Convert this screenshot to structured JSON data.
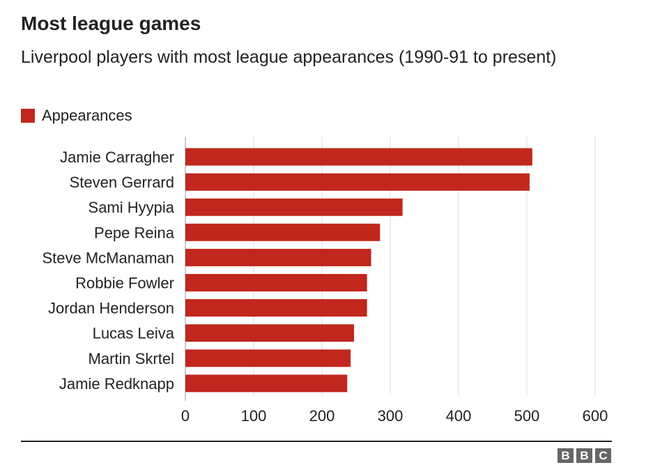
{
  "chart_data": {
    "type": "bar",
    "orientation": "horizontal",
    "title": "Most league games",
    "subtitle": "Liverpool players with most league appearances (1990-91 to present)",
    "categories": [
      "Jamie Carragher",
      "Steven Gerrard",
      "Sami Hyypia",
      "Pepe Reina",
      "Steve McManaman",
      "Robbie Fowler",
      "Jordan Henderson",
      "Lucas Leiva",
      "Martin Skrtel",
      "Jamie Redknapp"
    ],
    "series": [
      {
        "name": "Appearances",
        "values": [
          508,
          504,
          318,
          285,
          272,
          266,
          266,
          247,
          242,
          237
        ],
        "color": "#c1271c"
      }
    ],
    "xlim": [
      0,
      620
    ],
    "x_ticks": [
      0,
      100,
      200,
      300,
      400,
      500,
      600
    ],
    "x_tick_labels": [
      "0",
      "100",
      "200",
      "300",
      "400",
      "500",
      "600"
    ],
    "grid": true,
    "legend": "top-left"
  },
  "colors": {
    "bar": "#c1271c",
    "grid": "#dddddd",
    "text": "#222222",
    "logo": "#666666"
  },
  "footer": {
    "logo_letters": [
      "B",
      "B",
      "C"
    ]
  }
}
